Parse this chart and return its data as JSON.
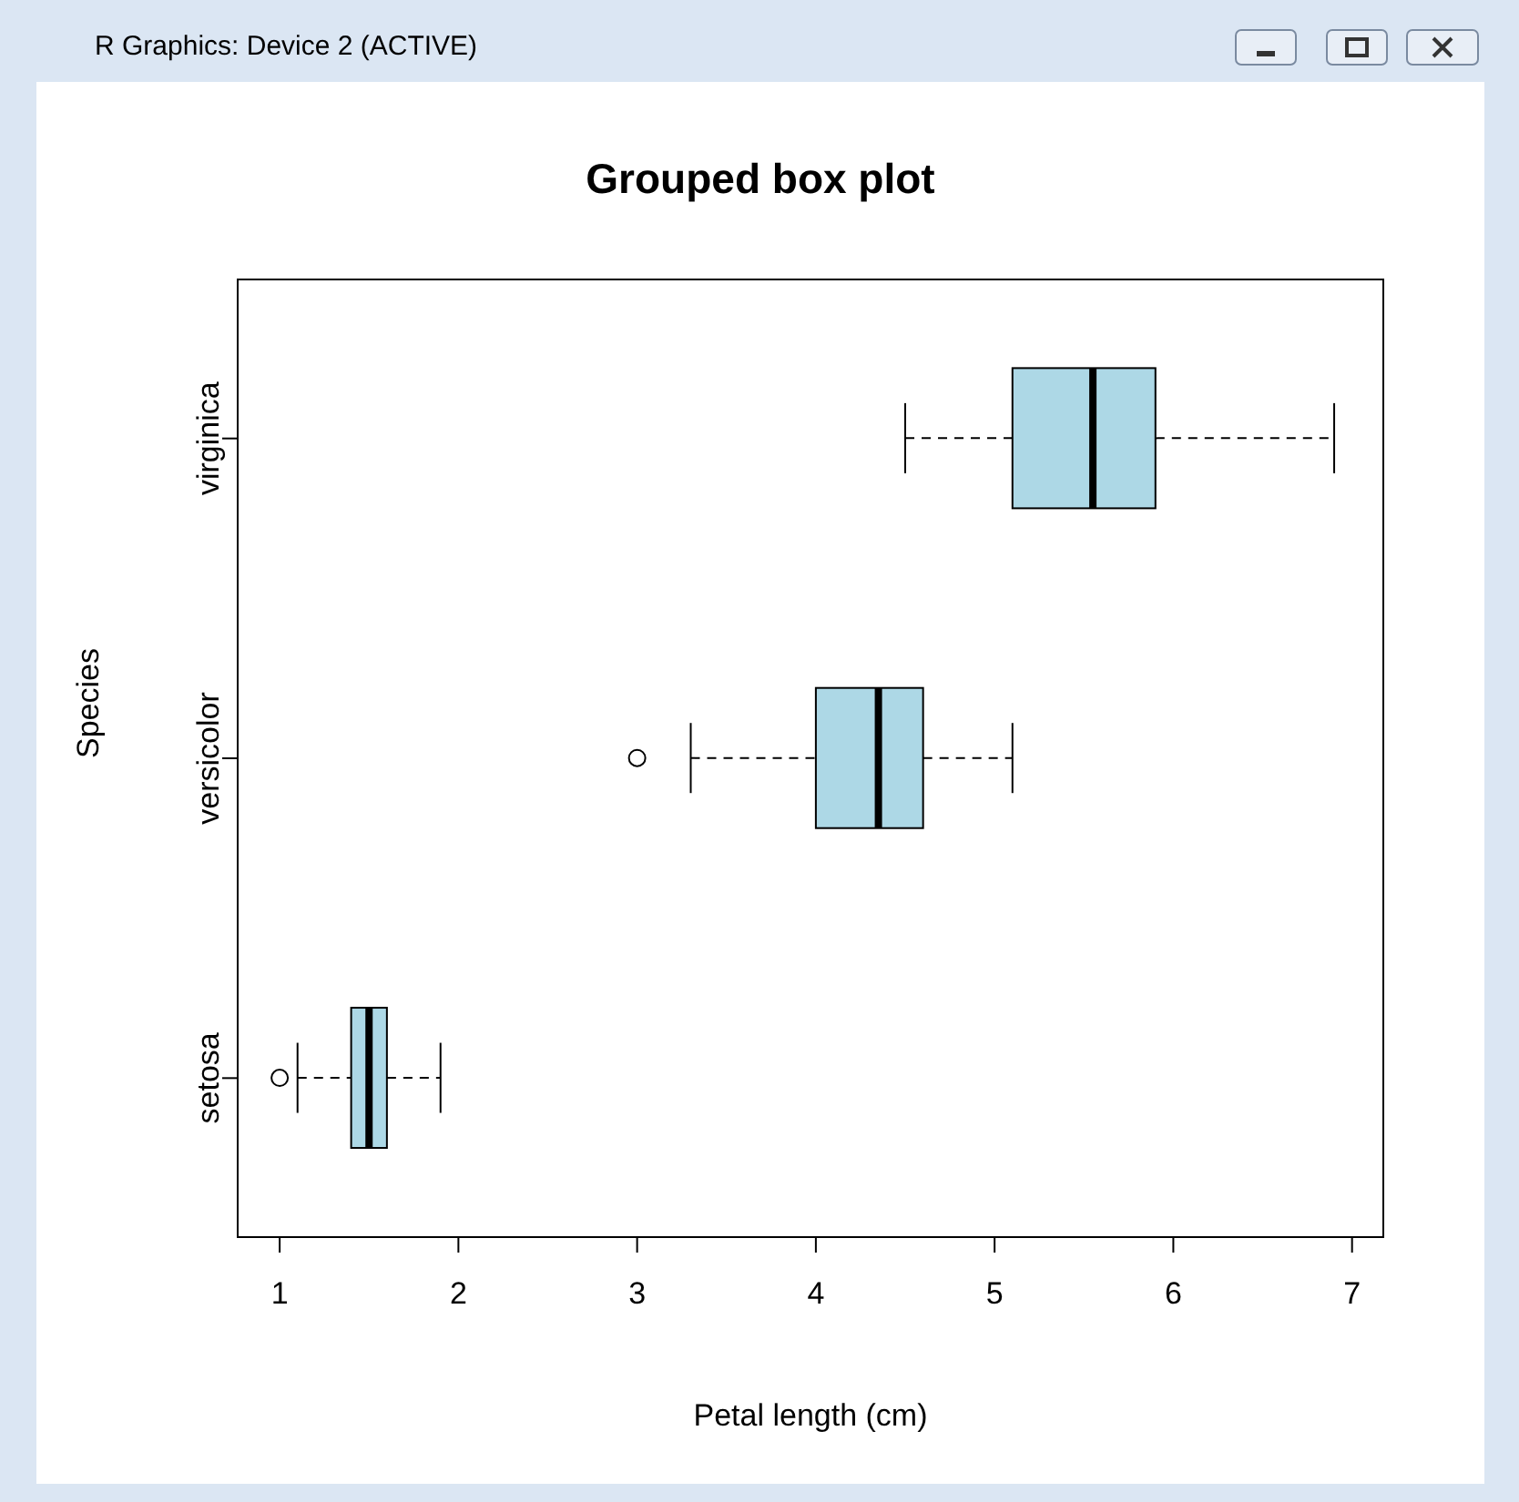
{
  "chart_data": {
    "type": "box",
    "title": "Grouped box plot",
    "xlabel": "Petal length (cm)",
    "ylabel": "Species",
    "orientation": "horizontal",
    "categories": [
      "virginica",
      "versicolor",
      "setosa"
    ],
    "series": [
      {
        "color": "#add8e6",
        "boxes": [
          {
            "low": 4.5,
            "q1": 5.1,
            "median": 5.55,
            "q3": 5.9,
            "high": 6.9
          },
          {
            "low": 3.3,
            "q1": 4.0,
            "median": 4.35,
            "q3": 4.6,
            "high": 5.1,
            "outliers": [
              3.0
            ]
          },
          {
            "low": 1.1,
            "q1": 1.4,
            "median": 1.5,
            "q3": 1.6,
            "high": 1.9,
            "outliers": [
              1.0
            ]
          }
        ]
      }
    ],
    "xlim": [
      0.76,
      7.18
    ],
    "xticks": [
      1,
      2,
      3,
      4,
      5,
      6,
      7
    ],
    "grid": false,
    "legend": false,
    "annotations": [
      "R Graphics: Device 2 (ACTIVE)"
    ]
  }
}
